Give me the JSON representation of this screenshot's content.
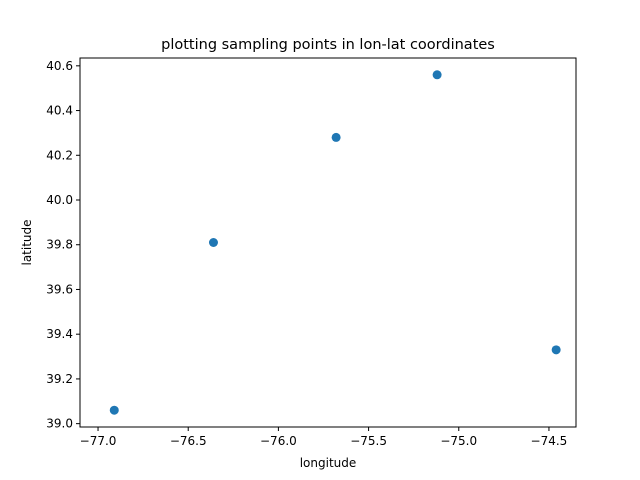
{
  "chart_data": {
    "type": "scatter",
    "title": "plotting sampling points in lon-lat coordinates",
    "xlabel": "longitude",
    "ylabel": "latitude",
    "xlim": [
      -77.1,
      -74.35
    ],
    "ylim": [
      38.985,
      40.635
    ],
    "xticks": [
      -77.0,
      -76.5,
      -76.0,
      -75.5,
      -75.0,
      -74.5
    ],
    "xtick_labels": [
      "−77.0",
      "−76.5",
      "−76.0",
      "−75.5",
      "−75.0",
      "−74.5"
    ],
    "yticks": [
      39.0,
      39.2,
      39.4,
      39.6,
      39.8,
      40.0,
      40.2,
      40.4,
      40.6
    ],
    "ytick_labels": [
      "39.0",
      "39.2",
      "39.4",
      "39.6",
      "39.8",
      "40.0",
      "40.2",
      "40.4",
      "40.6"
    ],
    "grid": false,
    "series": [
      {
        "color": "#1f77b4",
        "points": [
          {
            "x": -76.91,
            "y": 39.06
          },
          {
            "x": -76.36,
            "y": 39.81
          },
          {
            "x": -75.68,
            "y": 40.28
          },
          {
            "x": -75.12,
            "y": 40.56
          },
          {
            "x": -74.46,
            "y": 39.33
          }
        ]
      }
    ]
  }
}
